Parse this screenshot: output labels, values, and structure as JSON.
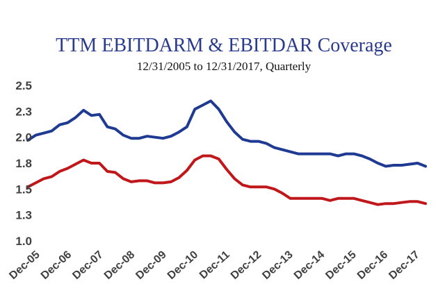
{
  "chart_data": {
    "type": "line",
    "title": "TTM EBITDARM & EBITDAR Coverage",
    "subtitle": "12/31/2005 to 12/31/2017, Quarterly",
    "xlabel": "",
    "ylabel": "",
    "ylim": [
      1.0,
      2.5
    ],
    "yticks": [
      "1.0",
      "1.3",
      "1.5",
      "1.8",
      "2.0",
      "2.3",
      "2.5"
    ],
    "ytick_values": [
      1.0,
      1.25,
      1.5,
      1.75,
      2.0,
      2.25,
      2.5
    ],
    "xticks": [
      "Dec-05",
      "Dec-06",
      "Dec-07",
      "Dec-08",
      "Dec-09",
      "Dec-10",
      "Dec-11",
      "Dec-12",
      "Dec-13",
      "Dec-14",
      "Dec-15",
      "Dec-16",
      "Dec-17"
    ],
    "grid": false,
    "legend": "none",
    "colors": {
      "blue": "#1f3a93",
      "red": "#c0171b"
    },
    "series": [
      {
        "color": "#1f3a93",
        "values": [
          1.97,
          2.02,
          2.04,
          2.06,
          2.12,
          2.14,
          2.19,
          2.26,
          2.21,
          2.22,
          2.1,
          2.08,
          2.02,
          1.99,
          1.99,
          2.01,
          2.0,
          1.99,
          2.01,
          2.05,
          2.1,
          2.27,
          2.31,
          2.35,
          2.27,
          2.15,
          2.05,
          1.98,
          1.96,
          1.96,
          1.94,
          1.9,
          1.88,
          1.86,
          1.84,
          1.84,
          1.84,
          1.84,
          1.84,
          1.82,
          1.84,
          1.84,
          1.82,
          1.79,
          1.75,
          1.72,
          1.73,
          1.73,
          1.74,
          1.75,
          1.72
        ]
      },
      {
        "color": "#c0171b",
        "values": [
          1.52,
          1.56,
          1.6,
          1.62,
          1.67,
          1.7,
          1.74,
          1.78,
          1.75,
          1.75,
          1.67,
          1.66,
          1.6,
          1.57,
          1.58,
          1.58,
          1.56,
          1.56,
          1.57,
          1.61,
          1.68,
          1.78,
          1.82,
          1.82,
          1.79,
          1.69,
          1.6,
          1.54,
          1.52,
          1.52,
          1.52,
          1.5,
          1.46,
          1.41,
          1.41,
          1.41,
          1.41,
          1.41,
          1.39,
          1.41,
          1.41,
          1.41,
          1.39,
          1.37,
          1.35,
          1.36,
          1.36,
          1.37,
          1.38,
          1.38,
          1.36
        ]
      }
    ]
  }
}
